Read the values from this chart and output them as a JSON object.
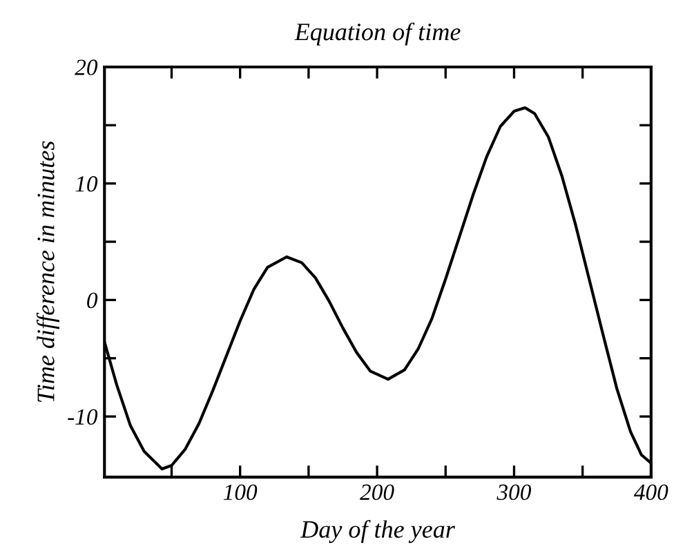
{
  "chart_data": {
    "type": "line",
    "title": "Equation of time",
    "xlabel": "Day of the year",
    "ylabel": "Time difference in minutes",
    "x": [
      1,
      10,
      20,
      30,
      43,
      50,
      60,
      70,
      80,
      90,
      100,
      110,
      120,
      134,
      145,
      155,
      165,
      175,
      185,
      195,
      208,
      220,
      230,
      240,
      250,
      260,
      270,
      280,
      290,
      300,
      308,
      315,
      325,
      335,
      345,
      355,
      365,
      375,
      385,
      393,
      400
    ],
    "series": [
      {
        "color": "#000000",
        "values": [
          -3.6,
          -7.3,
          -10.8,
          -13.0,
          -14.5,
          -14.2,
          -12.8,
          -10.6,
          -7.8,
          -4.8,
          -1.8,
          0.9,
          2.8,
          3.7,
          3.2,
          1.9,
          -0.1,
          -2.4,
          -4.5,
          -6.1,
          -6.8,
          -6.0,
          -4.2,
          -1.6,
          1.8,
          5.4,
          9.0,
          12.3,
          14.9,
          16.2,
          16.5,
          16.0,
          14.0,
          10.6,
          6.4,
          1.7,
          -3.0,
          -7.6,
          -11.3,
          -13.3,
          -14.0
        ]
      }
    ],
    "xlim": [
      1,
      400
    ],
    "ylim": [
      -15.2,
      20
    ],
    "xticks": [
      {
        "value": 50,
        "label": null
      },
      100,
      {
        "value": 150,
        "label": null
      },
      200,
      {
        "value": 250,
        "label": null
      },
      300,
      {
        "value": 350,
        "label": null
      },
      400
    ],
    "yticks": [
      -10,
      {
        "value": -5,
        "label": null
      },
      0,
      {
        "value": 5,
        "label": null
      },
      10,
      {
        "value": 15,
        "label": null
      },
      20
    ],
    "grid": false,
    "legend": false,
    "marker": "none",
    "line_style": "solid"
  }
}
